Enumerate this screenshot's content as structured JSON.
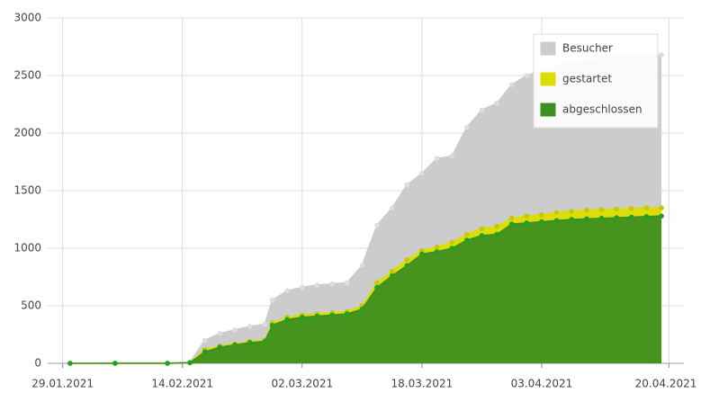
{
  "chart_data": {
    "type": "area",
    "x": [
      "30.01.2021",
      "05.02.2021",
      "12.02.2021",
      "15.02.2021",
      "17.02.2021",
      "19.02.2021",
      "21.02.2021",
      "23.02.2021",
      "25.02.2021",
      "26.02.2021",
      "28.02.2021",
      "02.03.2021",
      "04.03.2021",
      "06.03.2021",
      "08.03.2021",
      "10.03.2021",
      "12.03.2021",
      "14.03.2021",
      "16.03.2021",
      "18.03.2021",
      "20.03.2021",
      "22.03.2021",
      "24.03.2021",
      "26.03.2021",
      "28.03.2021",
      "30.03.2021",
      "01.04.2021",
      "03.04.2021",
      "05.04.2021",
      "07.04.2021",
      "09.04.2021",
      "11.04.2021",
      "13.04.2021",
      "15.04.2021",
      "17.04.2021",
      "19.04.2021"
    ],
    "series": [
      {
        "name": "Besucher",
        "color": "#cccccc",
        "values": [
          0,
          5,
          5,
          10,
          200,
          260,
          290,
          320,
          340,
          550,
          630,
          660,
          680,
          690,
          700,
          850,
          1200,
          1350,
          1550,
          1650,
          1780,
          1800,
          2050,
          2200,
          2260,
          2420,
          2500,
          2540,
          2580,
          2610,
          2630,
          2650,
          2660,
          2670,
          2680,
          2680
        ]
      },
      {
        "name": "gestartet",
        "color": "#dddd00",
        "values": [
          0,
          0,
          0,
          5,
          120,
          150,
          170,
          190,
          200,
          350,
          400,
          420,
          430,
          440,
          450,
          500,
          700,
          800,
          900,
          980,
          1010,
          1050,
          1120,
          1170,
          1190,
          1260,
          1280,
          1290,
          1310,
          1320,
          1330,
          1335,
          1340,
          1345,
          1350,
          1350
        ]
      },
      {
        "name": "abgeschlossen",
        "color": "#3d8f1f",
        "values": [
          0,
          0,
          0,
          5,
          100,
          140,
          160,
          180,
          190,
          330,
          380,
          400,
          410,
          420,
          430,
          470,
          660,
          760,
          850,
          950,
          970,
          1000,
          1070,
          1110,
          1120,
          1210,
          1220,
          1230,
          1240,
          1250,
          1255,
          1260,
          1265,
          1270,
          1275,
          1280
        ]
      }
    ],
    "xlim": [
      "27.01.2021",
      "22.04.2021"
    ],
    "xticks": [
      "29.01.2021",
      "14.02.2021",
      "02.03.2021",
      "18.03.2021",
      "03.04.2021",
      "20.04.2021"
    ],
    "ylim": [
      0,
      3000
    ],
    "yticks": [
      0,
      500,
      1000,
      1500,
      2000,
      2500,
      3000
    ],
    "grid": true,
    "legend": "upper right"
  }
}
